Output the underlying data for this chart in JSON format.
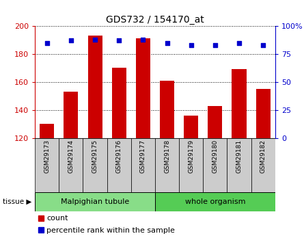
{
  "title": "GDS732 / 154170_at",
  "samples": [
    "GSM29173",
    "GSM29174",
    "GSM29175",
    "GSM29176",
    "GSM29177",
    "GSM29178",
    "GSM29179",
    "GSM29180",
    "GSM29181",
    "GSM29182"
  ],
  "counts": [
    130,
    153,
    193,
    170,
    191,
    161,
    136,
    143,
    169,
    155
  ],
  "percentiles": [
    85,
    87,
    88,
    87,
    88,
    85,
    83,
    83,
    85,
    83
  ],
  "ylim_left": [
    120,
    200
  ],
  "ylim_right": [
    0,
    100
  ],
  "yticks_left": [
    120,
    140,
    160,
    180,
    200
  ],
  "yticks_right": [
    0,
    25,
    50,
    75,
    100
  ],
  "bar_color": "#cc0000",
  "dot_color": "#0000cc",
  "bar_width": 0.6,
  "tissue_groups": [
    {
      "label": "Malpighian tubule",
      "indices": [
        0,
        1,
        2,
        3,
        4
      ],
      "color": "#88dd88"
    },
    {
      "label": "whole organism",
      "indices": [
        5,
        6,
        7,
        8,
        9
      ],
      "color": "#55cc55"
    }
  ],
  "tissue_label": "tissue",
  "legend_count_label": "count",
  "legend_percentile_label": "percentile rank within the sample",
  "tick_box_color": "#cccccc",
  "fig_bg": "#ffffff"
}
